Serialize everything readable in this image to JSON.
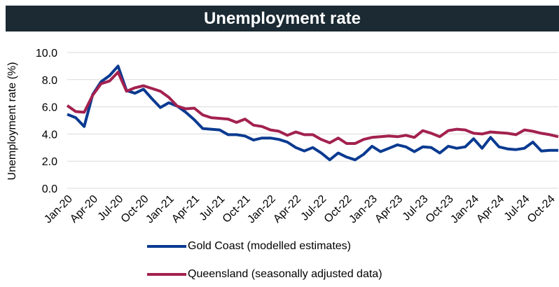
{
  "chart_data": {
    "type": "line",
    "title": "Unemployment rate",
    "ylabel": "Unemployment rate (%)",
    "xlabel": "",
    "ylim": [
      0,
      10
    ],
    "yticks": [
      "0.0",
      "2.0",
      "4.0",
      "6.0",
      "8.0",
      "10.0"
    ],
    "grid": true,
    "legend_position": "bottom",
    "x_tick_labels": [
      "Jan-20",
      "Apr-20",
      "Jul-20",
      "Oct-20",
      "Jan-21",
      "Apr-21",
      "Jul-21",
      "Oct-21",
      "Jan-22",
      "Apr-22",
      "Jul-22",
      "Oct-22",
      "Jan-23",
      "Apr-23",
      "Jul-23",
      "Oct-23",
      "Jan-24",
      "Apr-24",
      "Jul-24",
      "Oct-24"
    ],
    "x": [
      "Jan-20",
      "Feb-20",
      "Mar-20",
      "Apr-20",
      "May-20",
      "Jun-20",
      "Jul-20",
      "Aug-20",
      "Sep-20",
      "Oct-20",
      "Nov-20",
      "Dec-20",
      "Jan-21",
      "Feb-21",
      "Mar-21",
      "Apr-21",
      "May-21",
      "Jun-21",
      "Jul-21",
      "Aug-21",
      "Sep-21",
      "Oct-21",
      "Nov-21",
      "Dec-21",
      "Jan-22",
      "Feb-22",
      "Mar-22",
      "Apr-22",
      "May-22",
      "Jun-22",
      "Jul-22",
      "Aug-22",
      "Sep-22",
      "Oct-22",
      "Nov-22",
      "Dec-22",
      "Jan-23",
      "Feb-23",
      "Mar-23",
      "Apr-23",
      "May-23",
      "Jun-23",
      "Jul-23",
      "Aug-23",
      "Sep-23",
      "Oct-23",
      "Nov-23",
      "Dec-23",
      "Jan-24",
      "Feb-24",
      "Mar-24",
      "Apr-24",
      "May-24",
      "Jun-24",
      "Jul-24",
      "Aug-24",
      "Sep-24",
      "Oct-24",
      "Nov-24"
    ],
    "series": [
      {
        "name": "Gold Coast (modelled estimates)",
        "color": "#0a3a91",
        "values": [
          5.45,
          5.2,
          4.55,
          6.9,
          7.85,
          8.3,
          9.0,
          7.2,
          7.0,
          7.3,
          6.6,
          5.95,
          6.3,
          6.05,
          5.6,
          5.05,
          4.4,
          4.35,
          4.3,
          3.95,
          3.95,
          3.85,
          3.55,
          3.7,
          3.7,
          3.6,
          3.4,
          3.0,
          2.75,
          3.0,
          2.6,
          2.1,
          2.6,
          2.3,
          2.1,
          2.5,
          3.1,
          2.7,
          2.95,
          3.2,
          3.05,
          2.7,
          3.05,
          3.0,
          2.6,
          3.1,
          2.95,
          3.05,
          3.65,
          2.95,
          3.75,
          3.05,
          2.9,
          2.85,
          2.95,
          3.4,
          2.75,
          2.8,
          2.8
        ]
      },
      {
        "name": "Queensland (seasonally adjusted data)",
        "color": "#a3214f",
        "values": [
          6.1,
          5.65,
          5.6,
          6.85,
          7.7,
          7.9,
          8.55,
          7.15,
          7.4,
          7.55,
          7.35,
          7.15,
          6.7,
          6.05,
          5.85,
          5.9,
          5.4,
          5.2,
          5.15,
          5.1,
          4.85,
          5.1,
          4.65,
          4.55,
          4.3,
          4.2,
          3.9,
          4.15,
          3.95,
          3.95,
          3.6,
          3.35,
          3.7,
          3.3,
          3.3,
          3.6,
          3.75,
          3.8,
          3.85,
          3.8,
          3.9,
          3.75,
          4.25,
          4.05,
          3.8,
          4.25,
          4.35,
          4.3,
          4.05,
          4.0,
          4.15,
          4.1,
          4.05,
          3.95,
          4.3,
          4.2,
          4.05,
          3.95,
          3.8
        ]
      }
    ]
  }
}
